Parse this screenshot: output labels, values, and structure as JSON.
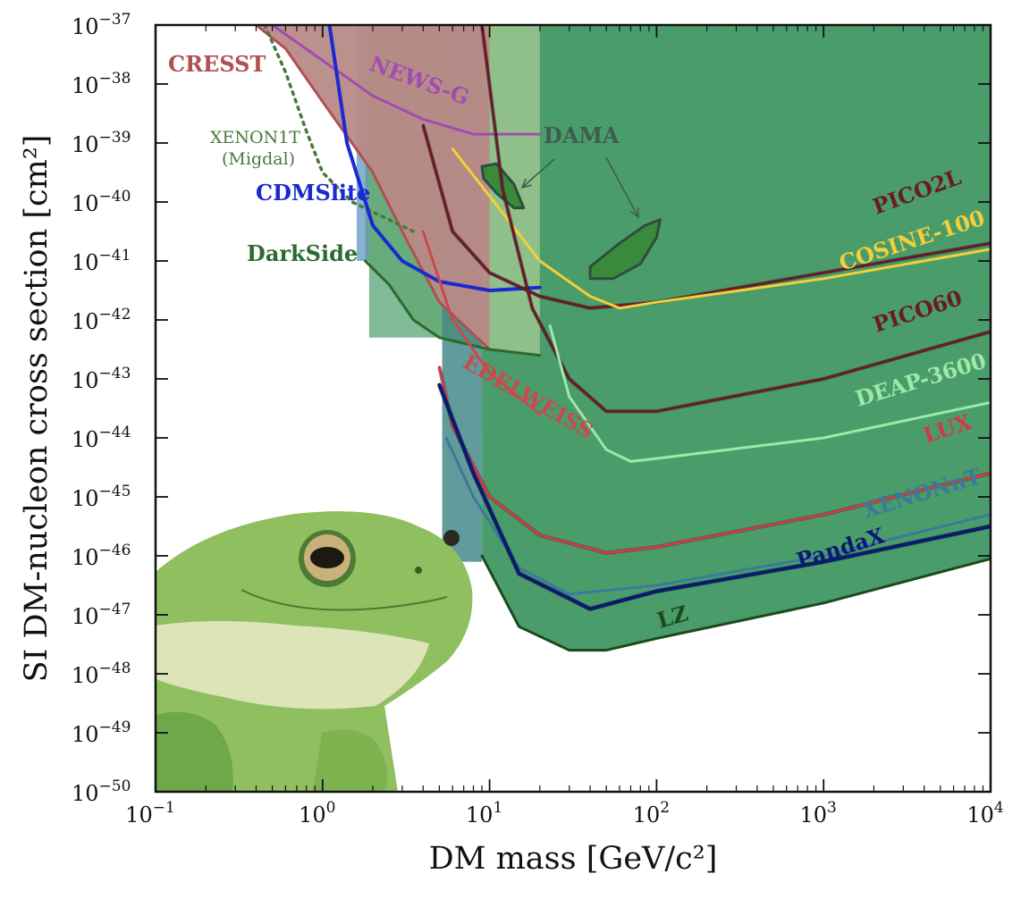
{
  "chart_data": {
    "type": "line",
    "xlabel": "DM mass [GeV/c²]",
    "ylabel": "SI DM-nucleon cross section [cm²]",
    "xscale": "log",
    "yscale": "log",
    "xlim": [
      0.1,
      10000
    ],
    "ylim": [
      1e-50,
      1e-37
    ],
    "grid": false,
    "x_ticks": [
      {
        "base": "10",
        "exp": "−1",
        "value": 0.1
      },
      {
        "base": "10",
        "exp": "0",
        "value": 1
      },
      {
        "base": "10",
        "exp": "1",
        "value": 10
      },
      {
        "base": "10",
        "exp": "2",
        "value": 100
      },
      {
        "base": "10",
        "exp": "3",
        "value": 1000
      },
      {
        "base": "10",
        "exp": "4",
        "value": 10000
      }
    ],
    "y_ticks": [
      {
        "base": "10",
        "exp": "−37",
        "value": -37
      },
      {
        "base": "10",
        "exp": "−38",
        "value": -38
      },
      {
        "base": "10",
        "exp": "−39",
        "value": -39
      },
      {
        "base": "10",
        "exp": "−40",
        "value": -40
      },
      {
        "base": "10",
        "exp": "−41",
        "value": -41
      },
      {
        "base": "10",
        "exp": "−42",
        "value": -42
      },
      {
        "base": "10",
        "exp": "−43",
        "value": -43
      },
      {
        "base": "10",
        "exp": "−44",
        "value": -44
      },
      {
        "base": "10",
        "exp": "−45",
        "value": -45
      },
      {
        "base": "10",
        "exp": "−46",
        "value": -46
      },
      {
        "base": "10",
        "exp": "−47",
        "value": -47
      },
      {
        "base": "10",
        "exp": "−48",
        "value": -48
      },
      {
        "base": "10",
        "exp": "−49",
        "value": -49
      },
      {
        "base": "10",
        "exp": "−50",
        "value": -50
      }
    ],
    "colors": {
      "fill_main": "#4a9d6a",
      "fill_darkside": "#9cc78f",
      "band_blue": "#3b7fb0",
      "band_teal": "#2d7a7a",
      "cresst_fill": "#b88a86"
    },
    "series": [
      {
        "name": "CRESST",
        "color": "#b05055",
        "x": [
          0.4,
          0.6,
          1.0,
          1.5,
          2.0,
          3.0,
          5.0,
          10
        ],
        "y": [
          -37.0,
          -37.4,
          -38.3,
          -39.0,
          -39.5,
          -40.5,
          -41.7,
          -42.5
        ]
      },
      {
        "name": "NEWS-G",
        "color": "#a44ab4",
        "x": [
          0.5,
          1.0,
          2.0,
          4.0,
          8.0,
          20.0
        ],
        "y": [
          -37.0,
          -37.6,
          -38.2,
          -38.6,
          -38.85,
          -38.85
        ]
      },
      {
        "name": "XENON1T (Migdal)",
        "color": "#4a7a3a",
        "x": [
          0.45,
          0.6,
          0.8,
          1.0,
          1.5,
          2.5,
          3.5
        ],
        "y": [
          -37.0,
          -37.8,
          -38.8,
          -39.5,
          -40.0,
          -40.3,
          -40.5
        ]
      },
      {
        "name": "CDMSlite",
        "color": "#1a2ad0",
        "x": [
          1.1,
          1.4,
          2.0,
          3.0,
          5.0,
          10.0,
          20.0
        ],
        "y": [
          -37.0,
          -39.0,
          -40.4,
          -41.0,
          -41.35,
          -41.5,
          -41.45
        ]
      },
      {
        "name": "DarkSide",
        "color": "#2d6a2d",
        "x": [
          1.8,
          2.5,
          3.5,
          5.0,
          10.0,
          20.0
        ],
        "y": [
          -41.0,
          -41.4,
          -42.0,
          -42.3,
          -42.5,
          -42.6
        ]
      },
      {
        "name": "DAMA",
        "color": "#2d4d40",
        "x": [
          10,
          80
        ],
        "y": [
          -40.0,
          -41.0
        ]
      },
      {
        "name": "PICO2L",
        "color": "#6a1a28",
        "x": [
          4.0,
          6.0,
          10.0,
          20.0,
          40.0,
          100.0,
          1000.0,
          10000.0
        ],
        "y": [
          -38.7,
          -40.5,
          -41.2,
          -41.6,
          -41.8,
          -41.7,
          -41.2,
          -40.7
        ]
      },
      {
        "name": "COSINE-100",
        "color": "#f4cf3a",
        "x": [
          6.0,
          10.0,
          20.0,
          40.0,
          60.0,
          100.0,
          1000.0,
          10000.0
        ],
        "y": [
          -39.1,
          -39.9,
          -41.0,
          -41.6,
          -41.8,
          -41.7,
          -41.3,
          -40.8
        ]
      },
      {
        "name": "PICO60",
        "color": "#6a1a28",
        "x": [
          9.0,
          12.0,
          18.0,
          30.0,
          50.0,
          100.0,
          1000.0,
          10000.0
        ],
        "y": [
          -37.0,
          -39.8,
          -41.8,
          -43.0,
          -43.55,
          -43.55,
          -43.0,
          -42.2
        ]
      },
      {
        "name": "DEAP-3600",
        "color": "#9ee8a8",
        "x": [
          23.0,
          30.0,
          50.0,
          70.0,
          100.0,
          1000.0,
          10000.0
        ],
        "y": [
          -42.1,
          -43.3,
          -44.2,
          -44.4,
          -44.35,
          -44.0,
          -43.4
        ]
      },
      {
        "name": "EDELWEISS",
        "color": "#c84a50",
        "x": [
          4.0,
          6.0,
          10.0,
          20.0
        ],
        "y": [
          -40.5,
          -42.0,
          -42.9,
          -43.6
        ]
      },
      {
        "name": "LUX",
        "color": "#d03a48",
        "x": [
          5.0,
          6.0,
          10.0,
          20.0,
          50.0,
          100.0,
          1000.0,
          10000.0
        ],
        "y": [
          -42.8,
          -43.8,
          -45.0,
          -45.65,
          -45.95,
          -45.85,
          -45.3,
          -44.6
        ]
      },
      {
        "name": "XENONnT",
        "color": "#3a7a9a",
        "x": [
          5.5,
          8.0,
          15.0,
          30.0,
          100.0,
          1000.0,
          10000.0
        ],
        "y": [
          -44.0,
          -45.0,
          -46.2,
          -46.65,
          -46.5,
          -46.0,
          -45.3
        ]
      },
      {
        "name": "PandaX",
        "color": "#0a1a70",
        "x": [
          5.0,
          8.0,
          15.0,
          40.0,
          100.0,
          1000.0,
          10000.0
        ],
        "y": [
          -43.1,
          -44.6,
          -46.3,
          -46.9,
          -46.6,
          -46.1,
          -45.5
        ]
      },
      {
        "name": "LZ",
        "color": "#1d4a1d",
        "x": [
          9.0,
          15.0,
          30.0,
          50.0,
          100.0,
          1000.0,
          10000.0
        ],
        "y": [
          -46.0,
          -47.2,
          -47.6,
          -47.6,
          -47.4,
          -46.8,
          -46.05
        ]
      }
    ],
    "annotations": [
      {
        "text": "DAMA",
        "color": "#3d5d50"
      }
    ]
  }
}
